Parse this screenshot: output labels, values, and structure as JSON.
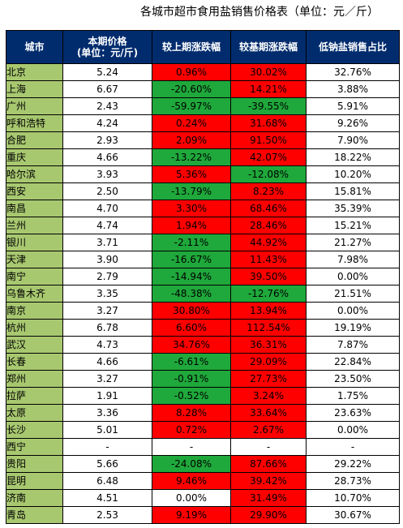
{
  "title": "各城市超市食用盐销售价格表（单位：元／斤）",
  "colors": {
    "header_bg": "#002c6e",
    "city_bg": "#a8c870",
    "up": "#ff0000",
    "down": "#1fa83b"
  },
  "table": {
    "headers": [
      "城市",
      "本期价格\n(单位：元/斤)",
      "较上期涨跌幅",
      "较基期涨跌幅",
      "低钠盐销售占比"
    ],
    "rows": [
      [
        "北京",
        "5.24",
        "0.96%",
        "30.02%",
        "32.76%"
      ],
      [
        "上海",
        "6.67",
        "-20.60%",
        "14.21%",
        "3.88%"
      ],
      [
        "广州",
        "2.43",
        "-59.97%",
        "-39.55%",
        "5.91%"
      ],
      [
        "呼和浩特",
        "4.24",
        "0.24%",
        "31.68%",
        "9.26%"
      ],
      [
        "合肥",
        "2.93",
        "2.09%",
        "91.50%",
        "7.90%"
      ],
      [
        "重庆",
        "4.66",
        "-13.22%",
        "42.07%",
        "18.22%"
      ],
      [
        "哈尔滨",
        "3.93",
        "5.36%",
        "-12.08%",
        "10.20%"
      ],
      [
        "西安",
        "2.50",
        "-13.79%",
        "8.23%",
        "15.81%"
      ],
      [
        "南昌",
        "4.70",
        "3.30%",
        "68.46%",
        "35.39%"
      ],
      [
        "兰州",
        "4.74",
        "1.94%",
        "28.46%",
        "15.21%"
      ],
      [
        "银川",
        "3.71",
        "-2.11%",
        "44.92%",
        "21.27%"
      ],
      [
        "天津",
        "3.90",
        "-16.67%",
        "11.43%",
        "7.98%"
      ],
      [
        "南宁",
        "2.79",
        "-14.94%",
        "39.50%",
        "0.00%"
      ],
      [
        "乌鲁木齐",
        "3.35",
        "-48.38%",
        "-12.76%",
        "21.51%"
      ],
      [
        "南京",
        "3.27",
        "30.80%",
        "13.94%",
        "0.00%"
      ],
      [
        "杭州",
        "6.78",
        "6.60%",
        "112.54%",
        "19.19%"
      ],
      [
        "武汉",
        "4.73",
        "34.76%",
        "36.31%",
        "7.87%"
      ],
      [
        "长春",
        "4.66",
        "-6.61%",
        "29.09%",
        "22.84%"
      ],
      [
        "郑州",
        "3.27",
        "-0.91%",
        "27.73%",
        "23.50%"
      ],
      [
        "拉萨",
        "1.91",
        "-0.52%",
        "3.24%",
        "1.75%"
      ],
      [
        "太原",
        "3.36",
        "8.28%",
        "33.64%",
        "23.63%"
      ],
      [
        "长沙",
        "5.01",
        "0.72%",
        "2.67%",
        "0.00%"
      ],
      [
        "西宁",
        "-",
        "-",
        "-",
        "-"
      ],
      [
        "贵阳",
        "5.66",
        "-24.08%",
        "87.66%",
        "29.22%"
      ],
      [
        "昆明",
        "6.48",
        "9.46%",
        "39.42%",
        "28.73%"
      ],
      [
        "济南",
        "4.51",
        "0.00%",
        "31.49%",
        "10.70%"
      ],
      [
        "青岛",
        "2.53",
        "9.19%",
        "29.90%",
        "30.67%"
      ]
    ]
  }
}
